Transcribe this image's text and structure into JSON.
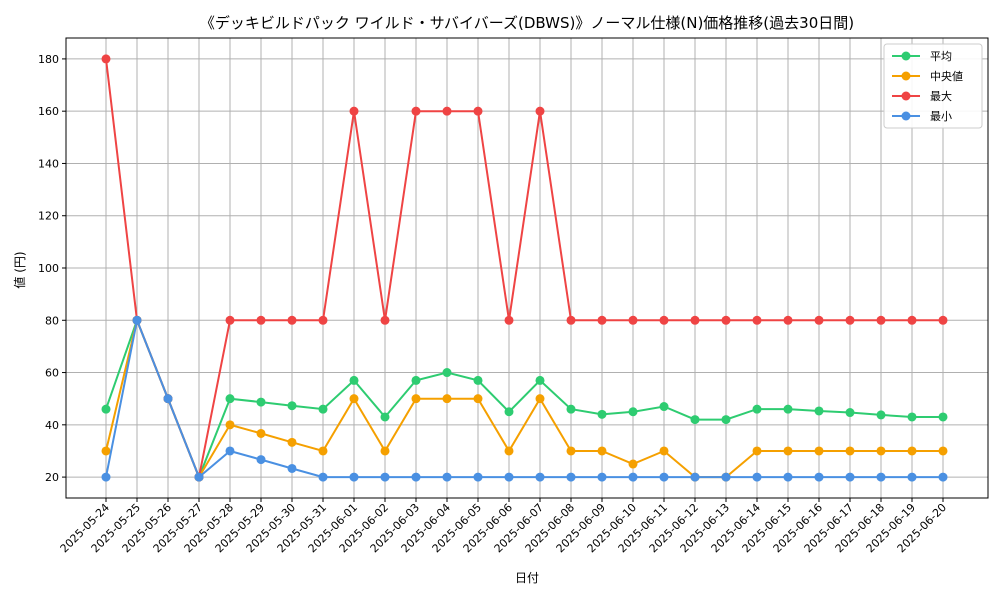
{
  "chart_data": {
    "type": "line",
    "title": "《デッキビルドパック ワイルド・サバイバーズ(DBWS)》ノーマル仕様(N)価格推移(過去30日間)",
    "xlabel": "日付",
    "ylabel": "値 (円)",
    "ylim": [
      12,
      188
    ],
    "yticks": [
      20,
      40,
      60,
      80,
      100,
      120,
      140,
      160,
      180
    ],
    "grid": true,
    "legend_position": "top-right",
    "categories": [
      "2025-05-24",
      "2025-05-25",
      "2025-05-26",
      "2025-05-27",
      "2025-05-28",
      "2025-05-29",
      "2025-05-30",
      "2025-05-31",
      "2025-06-01",
      "2025-06-02",
      "2025-06-03",
      "2025-06-04",
      "2025-06-05",
      "2025-06-06",
      "2025-06-07",
      "2025-06-08",
      "2025-06-09",
      "2025-06-10",
      "2025-06-11",
      "2025-06-12",
      "2025-06-13",
      "2025-06-14",
      "2025-06-15",
      "2025-06-16",
      "2025-06-17",
      "2025-06-18",
      "2025-06-19",
      "2025-06-20"
    ],
    "series": [
      {
        "name": "平均",
        "color": "#2ecc71",
        "values": [
          46,
          80,
          50,
          20,
          50,
          48.7,
          47.3,
          46,
          57,
          43,
          57,
          60,
          57,
          45,
          57,
          46,
          44,
          45,
          47,
          42,
          42,
          46,
          46,
          45.3,
          44.7,
          43.8,
          43,
          43
        ]
      },
      {
        "name": "中央値",
        "color": "#f5a000",
        "values": [
          30,
          80,
          50,
          20,
          40,
          36.7,
          33.3,
          30,
          50,
          30,
          50,
          50,
          50,
          30,
          50,
          30,
          30,
          25,
          30,
          20,
          20,
          30,
          30,
          30,
          30,
          30,
          30,
          30
        ]
      },
      {
        "name": "最大",
        "color": "#ef4444",
        "values": [
          180,
          80,
          50,
          20,
          80,
          80,
          80,
          80,
          160,
          80,
          160,
          160,
          160,
          80,
          160,
          80,
          80,
          80,
          80,
          80,
          80,
          80,
          80,
          80,
          80,
          80,
          80,
          80
        ]
      },
      {
        "name": "最小",
        "color": "#4a90e2",
        "values": [
          20,
          80,
          50,
          20,
          30,
          26.7,
          23.3,
          20,
          20,
          20,
          20,
          20,
          20,
          20,
          20,
          20,
          20,
          20,
          20,
          20,
          20,
          20,
          20,
          20,
          20,
          20,
          20,
          20
        ]
      }
    ]
  }
}
